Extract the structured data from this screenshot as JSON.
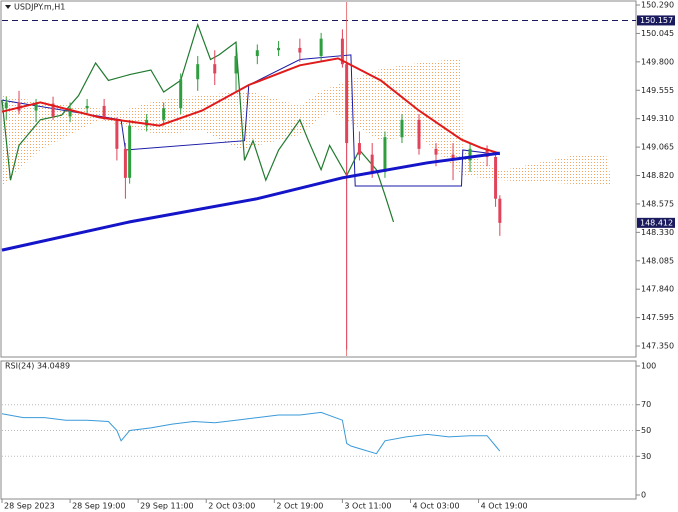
{
  "chart_data": {
    "type": "candlestick",
    "title": "USDJPY.m,H1",
    "xlim": [
      0,
      149
    ],
    "xticks": [
      {
        "value": 0,
        "label": "28 Sep 2023"
      },
      {
        "value": 16,
        "label": "28 Sep 19:00"
      },
      {
        "value": 32,
        "label": "29 Sep 11:00"
      },
      {
        "value": 48,
        "label": "2 Oct 03:00"
      },
      {
        "value": 64,
        "label": "2 Oct 19:00"
      },
      {
        "value": 80,
        "label": "3 Oct 11:00"
      },
      {
        "value": 96,
        "label": "4 Oct 03:00"
      },
      {
        "value": 112,
        "label": "4 Oct 19:00"
      }
    ],
    "ylim": [
      147.264,
      150.316
    ],
    "yticks": [
      {
        "value": 150.29,
        "label": "150.290"
      },
      150.045,
      {
        "value": 149.8,
        "label": "149.800"
      },
      149.555,
      {
        "value": 149.31,
        "label": "149.310"
      },
      149.065,
      {
        "value": 148.82,
        "label": "148.820"
      },
      148.575,
      {
        "value": 148.33,
        "label": "148.330"
      },
      148.085,
      {
        "value": 147.84,
        "label": "147.840"
      },
      147.595,
      {
        "value": 147.35,
        "label": "147.350"
      }
    ],
    "up_color": "#2e9e3e",
    "down_color": "#e0435a",
    "candles": {
      "x": [
        1,
        4,
        8,
        12,
        16,
        20,
        24,
        27,
        29,
        30,
        34,
        38,
        42,
        46,
        50,
        55,
        60,
        65,
        70,
        75,
        80,
        81,
        84,
        87,
        90,
        94,
        98,
        102,
        106,
        110,
        114,
        116,
        117
      ],
      "open": [
        149.4,
        149.45,
        149.38,
        149.44,
        149.33,
        149.4,
        149.42,
        149.3,
        149.05,
        148.8,
        149.25,
        149.3,
        149.4,
        149.65,
        149.78,
        149.7,
        149.85,
        149.9,
        149.92,
        149.85,
        150.0,
        149.78,
        149.1,
        149.0,
        148.85,
        149.15,
        149.3,
        149.05,
        149.0,
        148.95,
        149.05,
        148.98,
        148.62
      ],
      "high": [
        149.5,
        149.55,
        149.48,
        149.5,
        149.45,
        149.48,
        149.48,
        149.32,
        149.1,
        149.3,
        149.35,
        149.45,
        149.7,
        149.85,
        149.9,
        149.95,
        149.95,
        149.98,
        150.0,
        150.05,
        150.08,
        149.8,
        149.2,
        149.1,
        149.2,
        149.35,
        149.35,
        149.1,
        149.1,
        149.1,
        149.08,
        149.0,
        148.65
      ],
      "low": [
        149.3,
        149.35,
        149.28,
        149.3,
        149.28,
        149.35,
        149.3,
        148.95,
        148.62,
        148.75,
        149.2,
        149.25,
        149.35,
        149.55,
        149.6,
        149.55,
        149.78,
        149.85,
        149.8,
        149.8,
        149.75,
        147.32,
        148.95,
        148.8,
        148.8,
        149.1,
        149.0,
        148.9,
        148.78,
        148.85,
        148.9,
        148.55,
        148.3
      ],
      "close": [
        149.45,
        149.38,
        149.44,
        149.33,
        149.4,
        149.42,
        149.32,
        149.05,
        148.8,
        149.25,
        149.3,
        149.4,
        149.65,
        149.78,
        149.7,
        149.85,
        149.9,
        149.92,
        149.88,
        150.0,
        149.78,
        149.1,
        149.0,
        148.85,
        149.15,
        149.3,
        149.05,
        149.0,
        148.95,
        149.05,
        148.98,
        148.62,
        148.412
      ]
    },
    "cloud": {
      "color": "#f4a460",
      "upper": {
        "x": [
          0,
          14,
          28,
          37,
          47,
          58,
          70,
          75,
          89,
          98,
          108,
          108.3,
          117,
          134,
          142,
          143.5
        ],
        "values": [
          149.51,
          149.43,
          149.38,
          149.47,
          149.51,
          149.55,
          149.42,
          149.55,
          149.74,
          149.79,
          149.83,
          149.04,
          148.86,
          148.99,
          148.99,
          148.73
        ]
      },
      "lower": {
        "x": [
          0,
          9,
          23,
          37,
          47,
          56,
          70,
          77,
          89,
          98,
          108,
          117,
          143.5
        ],
        "values": [
          148.73,
          149.04,
          149.3,
          149.17,
          149.21,
          149.04,
          149.17,
          149.38,
          149.12,
          149.17,
          148.82,
          148.78,
          148.73
        ]
      }
    },
    "lines": [
      {
        "color": "#1a1aa8",
        "width": 1,
        "x": [
          0,
          28,
          29,
          57,
          58,
          70,
          82,
          83,
          108,
          108.3,
          117
        ],
        "values": [
          149.47,
          149.3,
          149.04,
          149.12,
          149.6,
          149.82,
          149.86,
          148.73,
          148.73,
          149.04,
          149.0
        ]
      },
      {
        "color": "#1f7a2e",
        "width": 1.2,
        "x": [
          0,
          2,
          4,
          9,
          14,
          18,
          22,
          25,
          30,
          35,
          38,
          42,
          46,
          49,
          51,
          55,
          57,
          59,
          62,
          65,
          70,
          72,
          75,
          77,
          81,
          84,
          88,
          90,
          92
        ],
        "values": [
          149.47,
          148.78,
          149.08,
          149.3,
          149.34,
          149.51,
          149.79,
          149.64,
          149.69,
          149.73,
          149.54,
          149.64,
          150.12,
          149.82,
          149.86,
          149.97,
          148.95,
          149.12,
          148.78,
          149.04,
          149.3,
          149.12,
          148.87,
          149.08,
          148.82,
          149.04,
          148.87,
          148.65,
          148.42
        ]
      },
      {
        "color": "#e01b1b",
        "width": 2,
        "x": [
          0,
          9,
          23,
          37,
          47,
          58,
          70,
          79,
          89,
          98,
          108,
          112.5,
          117
        ],
        "values": [
          149.37,
          149.45,
          149.32,
          149.25,
          149.38,
          149.6,
          149.77,
          149.83,
          149.64,
          149.38,
          149.13,
          149.06,
          149.01
        ]
      },
      {
        "color": "#1414c8",
        "width": 3,
        "x": [
          0,
          30,
          60,
          80,
          100,
          117
        ],
        "values": [
          148.177,
          148.42,
          148.62,
          148.8,
          148.93,
          149.013
        ]
      }
    ],
    "hline": {
      "value": 150.157,
      "color": "#1a1a5e"
    },
    "vline": {
      "x": 81,
      "color": "#e05a5a"
    },
    "rsi": {
      "title": "RSI(24) 34.0489",
      "color": "#3a9ad9",
      "ylim": [
        0,
        100
      ],
      "yticks": [
        100,
        70,
        50,
        30,
        0
      ],
      "x": [
        0,
        5,
        10,
        15,
        20,
        25,
        27,
        28,
        30,
        35,
        40,
        45,
        50,
        55,
        60,
        65,
        70,
        75,
        80,
        81,
        82,
        85,
        88,
        90,
        95,
        100,
        105,
        110,
        114,
        116,
        117
      ],
      "values": [
        63,
        60,
        60,
        58,
        58,
        57,
        50,
        42,
        50,
        52,
        55,
        57,
        56,
        58,
        60,
        62,
        62,
        64,
        58,
        40,
        38,
        35,
        32,
        42,
        45,
        47,
        45,
        46,
        46,
        38,
        34
      ]
    }
  }
}
